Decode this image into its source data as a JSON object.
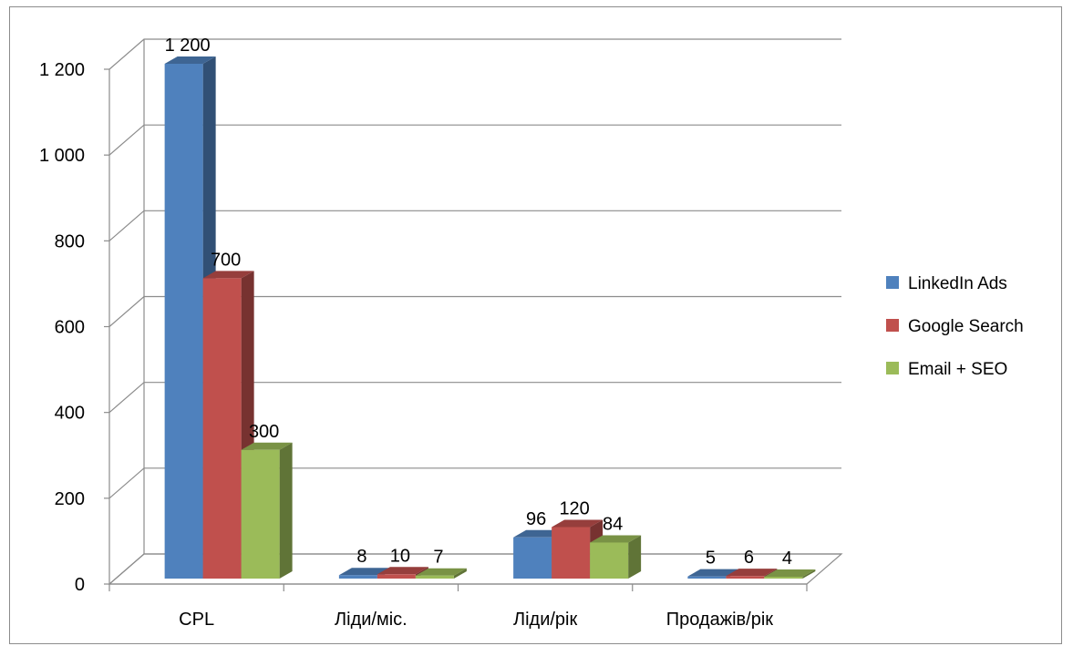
{
  "chart_data": {
    "type": "bar",
    "categories": [
      "CPL",
      "Ліди/міс.",
      "Ліди/рік",
      "Продажів/рік"
    ],
    "series": [
      {
        "name": "LinkedIn Ads",
        "values": [
          1200,
          8,
          96,
          5
        ],
        "labels": [
          "1 200",
          "8",
          "96",
          "5"
        ],
        "color": "#4f81bd"
      },
      {
        "name": "Google Search",
        "values": [
          700,
          10,
          120,
          6
        ],
        "labels": [
          "700",
          "10",
          "120",
          "6"
        ],
        "color": "#c0504d"
      },
      {
        "name": "Email + SEO",
        "values": [
          300,
          7,
          84,
          4
        ],
        "labels": [
          "300",
          "7",
          "84",
          "4"
        ],
        "color": "#9bbb59"
      }
    ],
    "ylim": [
      0,
      1200
    ],
    "yticks": [
      0,
      200,
      400,
      600,
      800,
      1000,
      1200
    ],
    "ytick_labels": [
      "0",
      "200",
      "400",
      "600",
      "800",
      "1 000",
      "1 200"
    ],
    "grid": true,
    "legend_position": "right",
    "style": "3d-clustered-column"
  }
}
